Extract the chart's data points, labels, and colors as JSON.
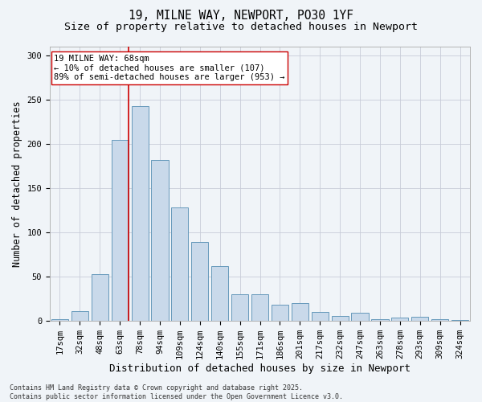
{
  "title_line1": "19, MILNE WAY, NEWPORT, PO30 1YF",
  "title_line2": "Size of property relative to detached houses in Newport",
  "xlabel": "Distribution of detached houses by size in Newport",
  "ylabel": "Number of detached properties",
  "categories": [
    "17sqm",
    "32sqm",
    "48sqm",
    "63sqm",
    "78sqm",
    "94sqm",
    "109sqm",
    "124sqm",
    "140sqm",
    "155sqm",
    "171sqm",
    "186sqm",
    "201sqm",
    "217sqm",
    "232sqm",
    "247sqm",
    "263sqm",
    "278sqm",
    "293sqm",
    "309sqm",
    "324sqm"
  ],
  "values": [
    2,
    11,
    53,
    204,
    242,
    182,
    128,
    89,
    62,
    30,
    30,
    18,
    20,
    10,
    6,
    9,
    2,
    4,
    5,
    2,
    1
  ],
  "bar_color": "#c9d9ea",
  "bar_edge_color": "#6699bb",
  "vline_color": "#cc0000",
  "vline_index": 3.42,
  "annotation_text": "19 MILNE WAY: 68sqm\n← 10% of detached houses are smaller (107)\n89% of semi-detached houses are larger (953) →",
  "annotation_box_facecolor": "#ffffff",
  "annotation_box_edgecolor": "#cc0000",
  "annotation_fontsize": 7.5,
  "ylim": [
    0,
    310
  ],
  "yticks": [
    0,
    50,
    100,
    150,
    200,
    250,
    300
  ],
  "title_fontsize": 10.5,
  "subtitle_fontsize": 9.5,
  "xlabel_fontsize": 9,
  "ylabel_fontsize": 8.5,
  "tick_fontsize": 7.5,
  "footer_text": "Contains HM Land Registry data © Crown copyright and database right 2025.\nContains public sector information licensed under the Open Government Licence v3.0.",
  "footer_fontsize": 6,
  "background_color": "#f0f4f8",
  "grid_color": "#c8ccd8"
}
